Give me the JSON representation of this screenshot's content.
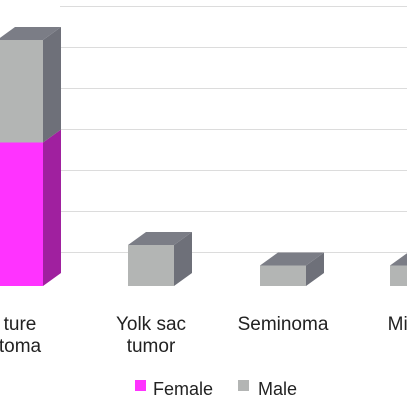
{
  "chart_data": {
    "type": "bar",
    "stacked": true,
    "three_d": true,
    "categories": [
      [
        "ture",
        "toma"
      ],
      [
        "Yolk sac",
        "tumor"
      ],
      [
        "Seminoma"
      ],
      [
        "Mixed"
      ]
    ],
    "series": [
      {
        "name": "Female",
        "color": "#ff33ff",
        "side_color": "#a0209f",
        "top_color": "#ff66ff",
        "values": [
          7,
          0,
          0,
          0
        ]
      },
      {
        "name": "Male",
        "color": "#b3b5b4",
        "side_color": "#6e7079",
        "top_color": "#7b7d86",
        "values": [
          5,
          2,
          1,
          1
        ]
      }
    ],
    "ylim": [
      0,
      13
    ],
    "grid": true,
    "legend_position": "bottom"
  }
}
